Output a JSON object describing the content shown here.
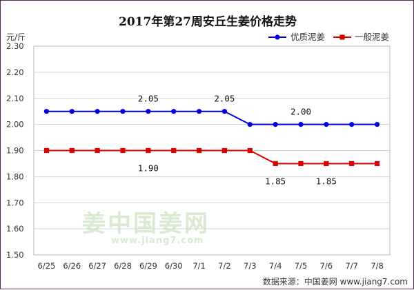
{
  "chart_data": {
    "type": "line",
    "title": "2017年第27周安丘生姜价格走势",
    "ylabel": "元/斤",
    "ylim": [
      1.5,
      2.3
    ],
    "yticks": [
      "1.50",
      "1.60",
      "1.70",
      "1.80",
      "1.90",
      "2.00",
      "2.10",
      "2.20",
      "2.30"
    ],
    "categories": [
      "6/25",
      "6/26",
      "6/27",
      "6/28",
      "6/29",
      "6/30",
      "7/1",
      "7/2",
      "7/3",
      "7/4",
      "7/5",
      "7/6",
      "7/7",
      "7/8"
    ],
    "series": [
      {
        "name": "优质泥姜",
        "color": "#0000dd",
        "marker": "circle",
        "values": [
          2.05,
          2.05,
          2.05,
          2.05,
          2.05,
          2.05,
          2.05,
          2.05,
          2.0,
          2.0,
          2.0,
          2.0,
          2.0,
          2.0
        ]
      },
      {
        "name": "一般泥姜",
        "color": "#dd0000",
        "marker": "square",
        "values": [
          1.9,
          1.9,
          1.9,
          1.9,
          1.9,
          1.9,
          1.9,
          1.9,
          1.9,
          1.85,
          1.85,
          1.85,
          1.85,
          1.85
        ]
      }
    ],
    "annotations": [
      {
        "series": 0,
        "index": 4,
        "text": "2.05",
        "position": "above"
      },
      {
        "series": 0,
        "index": 7,
        "text": "2.05",
        "position": "above"
      },
      {
        "series": 0,
        "index": 10,
        "text": "2.00",
        "position": "above"
      },
      {
        "series": 1,
        "index": 4,
        "text": "1.90",
        "position": "below"
      },
      {
        "series": 1,
        "index": 9,
        "text": "1.85",
        "position": "below"
      },
      {
        "series": 1,
        "index": 11,
        "text": "1.85",
        "position": "below"
      }
    ],
    "legend": "top-right",
    "grid": "horizontal"
  },
  "watermark": {
    "cn": "姜中国姜网",
    "en": "www.jiang7.com"
  },
  "source": "数据来源：中国姜网 www.jiang7.com"
}
